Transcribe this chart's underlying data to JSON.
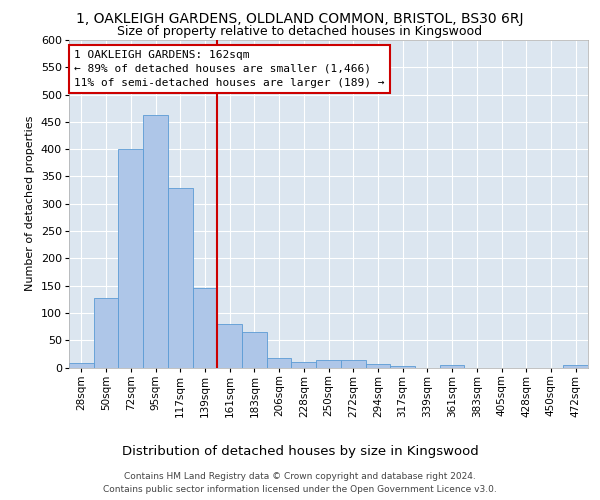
{
  "title_line1": "1, OAKLEIGH GARDENS, OLDLAND COMMON, BRISTOL, BS30 6RJ",
  "title_line2": "Size of property relative to detached houses in Kingswood",
  "xlabel": "Distribution of detached houses by size in Kingswood",
  "ylabel": "Number of detached properties",
  "footer_line1": "Contains HM Land Registry data © Crown copyright and database right 2024.",
  "footer_line2": "Contains public sector information licensed under the Open Government Licence v3.0.",
  "bins": [
    "28sqm",
    "50sqm",
    "72sqm",
    "95sqm",
    "117sqm",
    "139sqm",
    "161sqm",
    "183sqm",
    "206sqm",
    "228sqm",
    "250sqm",
    "272sqm",
    "294sqm",
    "317sqm",
    "339sqm",
    "361sqm",
    "383sqm",
    "405sqm",
    "428sqm",
    "450sqm",
    "472sqm"
  ],
  "values": [
    8,
    128,
    400,
    462,
    328,
    146,
    80,
    65,
    18,
    10,
    14,
    14,
    6,
    2,
    0,
    4,
    0,
    0,
    0,
    0,
    4
  ],
  "bar_color": "#aec6e8",
  "bar_edge_color": "#5b9bd5",
  "vline_color": "#cc0000",
  "vline_bin_index": 6,
  "annotation_line1": "1 OAKLEIGH GARDENS: 162sqm",
  "annotation_line2": "← 89% of detached houses are smaller (1,466)",
  "annotation_line3": "11% of semi-detached houses are larger (189) →",
  "annotation_box_color": "white",
  "annotation_box_edge": "#cc0000",
  "ylim": [
    0,
    600
  ],
  "yticks": [
    0,
    50,
    100,
    150,
    200,
    250,
    300,
    350,
    400,
    450,
    500,
    550,
    600
  ],
  "background_color": "#dce6f0",
  "grid_color": "white",
  "title_fontsize": 10,
  "subtitle_fontsize": 9,
  "ylabel_fontsize": 8,
  "xlabel_fontsize": 9.5,
  "tick_fontsize": 7.5,
  "ytick_fontsize": 8,
  "annotation_fontsize": 8,
  "footer_fontsize": 6.5
}
